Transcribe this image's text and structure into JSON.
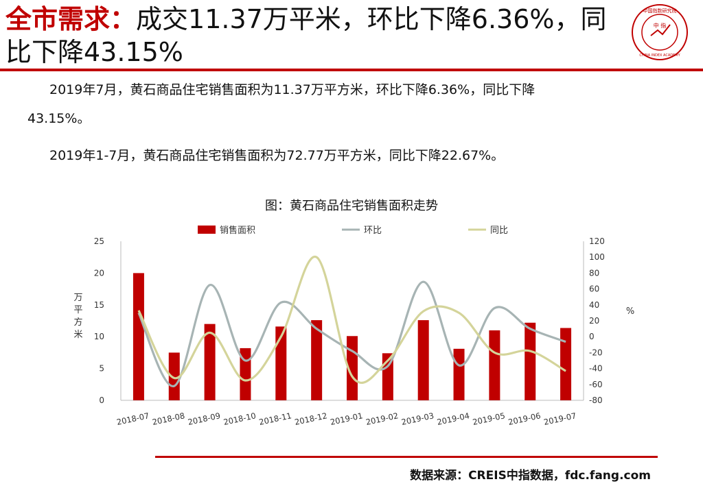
{
  "title": {
    "highlight": "全市需求：",
    "rest": "成交11.37万平米，环比下降6.36%，同比下降43.15%"
  },
  "logo": {
    "outer_text": "中国指数研究院",
    "inner_text": "中 指",
    "en_text": "CHINA INDEX ACADEMY"
  },
  "paragraphs": {
    "p1": "2019年7月，黄石商品住宅销售面积为11.37万平方米，环比下降6.36%，同比下降",
    "p1_cont": "43.15%。",
    "p2": "2019年1-7月，黄石商品住宅销售面积为72.77万平方米，同比下降22.67%。"
  },
  "chart_data": {
    "type": "bar",
    "title": "图：黄石商品住宅销售面积走势",
    "categories": [
      "2018-07",
      "2018-08",
      "2018-09",
      "2018-10",
      "2018-11",
      "2018-12",
      "2019-01",
      "2019-02",
      "2019-03",
      "2019-04",
      "2019-05",
      "2019-06",
      "2019-07"
    ],
    "series": [
      {
        "name": "销售面积",
        "type": "bar",
        "axis": "left",
        "color": "#c00000",
        "values": [
          20.0,
          7.5,
          12.0,
          8.2,
          11.6,
          12.6,
          10.1,
          7.4,
          12.6,
          8.1,
          11.0,
          12.2,
          11.37
        ]
      },
      {
        "name": "环比",
        "type": "line",
        "axis": "right",
        "color": "#a7b4b4",
        "values": [
          30,
          -62,
          65,
          -30,
          43,
          10,
          -18,
          -37,
          69,
          -36,
          36,
          10,
          -6.36
        ]
      },
      {
        "name": "同比",
        "type": "line",
        "axis": "right",
        "color": "#d4d49a",
        "values": [
          33,
          -52,
          5,
          -55,
          0,
          100,
          -50,
          -30,
          32,
          30,
          -20,
          -18,
          -43.15
        ]
      }
    ],
    "ylabel": "万平方米",
    "y2label": "%",
    "ylim": [
      0,
      25
    ],
    "yticks": [
      0,
      5,
      10,
      15,
      20,
      25
    ],
    "y2lim": [
      -80,
      120
    ],
    "y2ticks": [
      -80,
      -60,
      -40,
      -20,
      0,
      20,
      40,
      60,
      80,
      100,
      120
    ],
    "legend": "top-center",
    "grid": false
  },
  "source": "数据来源：CREIS中指数据，fdc.fang.com"
}
